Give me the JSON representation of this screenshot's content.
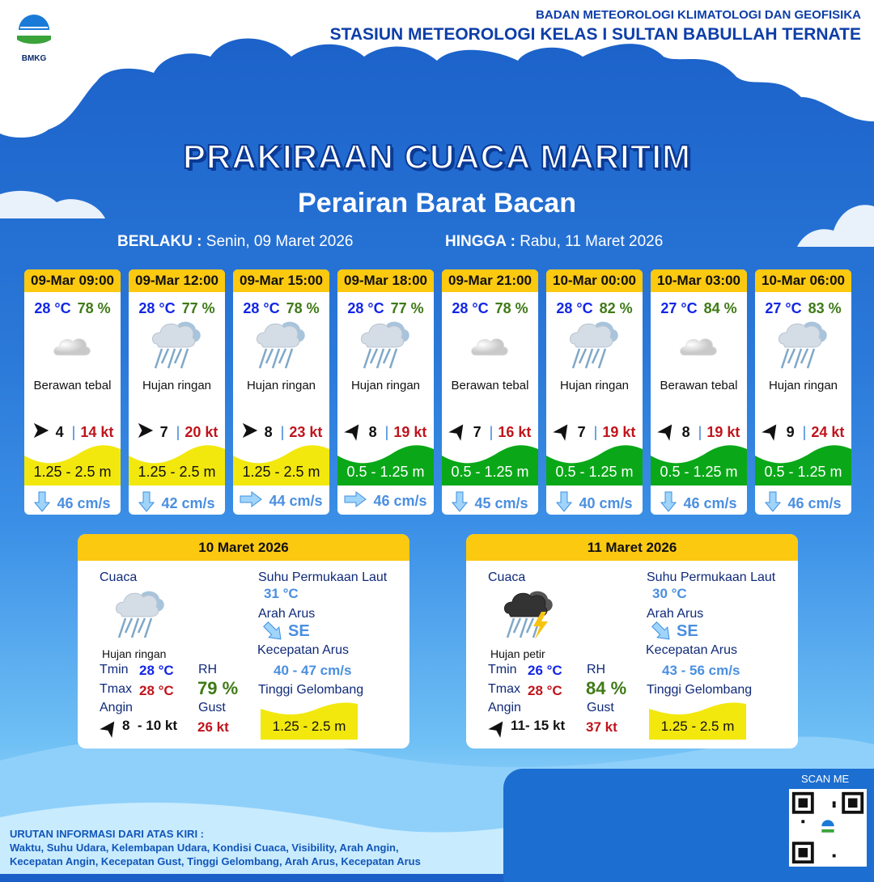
{
  "header": {
    "logo_text": "BMKG",
    "agency": "BADAN METEOROLOGI KLIMATOLOGI DAN GEOFISIKA",
    "station": "STASIUN METEOROLOGI KELAS I SULTAN BABULLAH TERNATE"
  },
  "title": "PRAKIRAAN CUACA MARITIM",
  "subtitle": "Perairan Barat Bacan",
  "validity": {
    "from_label": "BERLAKU :",
    "from": "Senin, 09 Maret 2026",
    "to_label": "HINGGA :",
    "to": "Rabu, 11 Maret 2026"
  },
  "colors": {
    "header_yellow": "#fcc911",
    "wave_yellow": "#f2e80e",
    "wave_green": "#0aa818",
    "temp": "#1226e6",
    "rh": "#3f7a17",
    "gust": "#c0141c"
  },
  "forecasts": [
    {
      "time": "09-Mar 09:00",
      "temp": "28 °C",
      "rh": "78 %",
      "icon": "cloud-icon",
      "cond": "Berawan tebal",
      "wind_dir": "east",
      "wind": "4",
      "gust": "14 kt",
      "wave": "1.25 - 2.5 m",
      "wave_color": "yellow",
      "cur_dir": "down",
      "current": "46 cm/s"
    },
    {
      "time": "09-Mar 12:00",
      "temp": "28 °C",
      "rh": "77 %",
      "icon": "rain-icon",
      "cond": "Hujan ringan",
      "wind_dir": "east",
      "wind": "7",
      "gust": "20 kt",
      "wave": "1.25 - 2.5 m",
      "wave_color": "yellow",
      "cur_dir": "down",
      "current": "42 cm/s"
    },
    {
      "time": "09-Mar 15:00",
      "temp": "28 °C",
      "rh": "78 %",
      "icon": "rain-icon",
      "cond": "Hujan ringan",
      "wind_dir": "east",
      "wind": "8",
      "gust": "23 kt",
      "wave": "1.25 - 2.5 m",
      "wave_color": "yellow",
      "cur_dir": "right",
      "current": "44 cm/s"
    },
    {
      "time": "09-Mar 18:00",
      "temp": "28 °C",
      "rh": "77 %",
      "icon": "rain-icon",
      "cond": "Hujan ringan",
      "wind_dir": "north-east",
      "wind": "8",
      "gust": "19 kt",
      "wave": "0.5 - 1.25 m",
      "wave_color": "green",
      "cur_dir": "right",
      "current": "46 cm/s"
    },
    {
      "time": "09-Mar 21:00",
      "temp": "28 °C",
      "rh": "78 %",
      "icon": "cloud-icon",
      "cond": "Berawan tebal",
      "wind_dir": "north-east",
      "wind": "7",
      "gust": "16 kt",
      "wave": "0.5 - 1.25 m",
      "wave_color": "green",
      "cur_dir": "down",
      "current": "45 cm/s"
    },
    {
      "time": "10-Mar 00:00",
      "temp": "28 °C",
      "rh": "82 %",
      "icon": "rain-icon",
      "cond": "Hujan ringan",
      "wind_dir": "north-east",
      "wind": "7",
      "gust": "19 kt",
      "wave": "0.5 - 1.25 m",
      "wave_color": "green",
      "cur_dir": "down",
      "current": "40 cm/s"
    },
    {
      "time": "10-Mar 03:00",
      "temp": "27 °C",
      "rh": "84 %",
      "icon": "cloud-icon",
      "cond": "Berawan tebal",
      "wind_dir": "north-east",
      "wind": "8",
      "gust": "19 kt",
      "wave": "0.5 - 1.25 m",
      "wave_color": "green",
      "cur_dir": "down",
      "current": "46 cm/s"
    },
    {
      "time": "10-Mar 06:00",
      "temp": "27 °C",
      "rh": "83 %",
      "icon": "rain-icon",
      "cond": "Hujan ringan",
      "wind_dir": "north-east",
      "wind": "9",
      "gust": "24 kt",
      "wave": "0.5 - 1.25 m",
      "wave_color": "green",
      "cur_dir": "down",
      "current": "46 cm/s"
    }
  ],
  "daily": [
    {
      "date": "10 Maret 2026",
      "cuaca_label": "Cuaca",
      "icon": "rain-icon",
      "cond": "Hujan ringan",
      "tmin_label": "Tmin",
      "tmin": "28 °C",
      "tmax_label": "Tmax",
      "tmax": "28 °C",
      "rh_label": "RH",
      "rh": "79 %",
      "angin_label": "Angin",
      "angin": "8  - 10 kt",
      "gust_label": "Gust",
      "gust": "26 kt",
      "sst_label": "Suhu Permukaan Laut",
      "sst": "31 °C",
      "arah_label": "Arah Arus",
      "arah": "SE",
      "kec_label": "Kecepatan Arus",
      "kec": "40 - 47 cm/s",
      "wave_label": "Tinggi Gelombang",
      "wave": "1.25 - 2.5 m"
    },
    {
      "date": "11 Maret 2026",
      "cuaca_label": "Cuaca",
      "icon": "thunderstorm-icon",
      "cond": "Hujan petir",
      "tmin_label": "Tmin",
      "tmin": "26 °C",
      "tmax_label": "Tmax",
      "tmax": "28 °C",
      "rh_label": "RH",
      "rh": "84 %",
      "angin_label": "Angin",
      "angin": "11- 15 kt",
      "gust_label": "Gust",
      "gust": "37 kt",
      "sst_label": "Suhu Permukaan Laut",
      "sst": "30 °C",
      "arah_label": "Arah Arus",
      "arah": "SE",
      "kec_label": "Kecepatan Arus",
      "kec": "43 - 56 cm/s",
      "wave_label": "Tinggi Gelombang",
      "wave": "1.25 - 2.5 m"
    }
  ],
  "footer": {
    "heading": "URUTAN INFORMASI DARI ATAS KIRI :",
    "line1": "Waktu, Suhu Udara, Kelembapan Udara, Kondisi Cuaca, Visibility, Arah Angin,",
    "line2": "Kecepatan Angin, Kecepatan Gust, Tinggi Gelombang, Arah Arus, Kecepatan Arus"
  },
  "qr": {
    "label": "SCAN ME"
  }
}
